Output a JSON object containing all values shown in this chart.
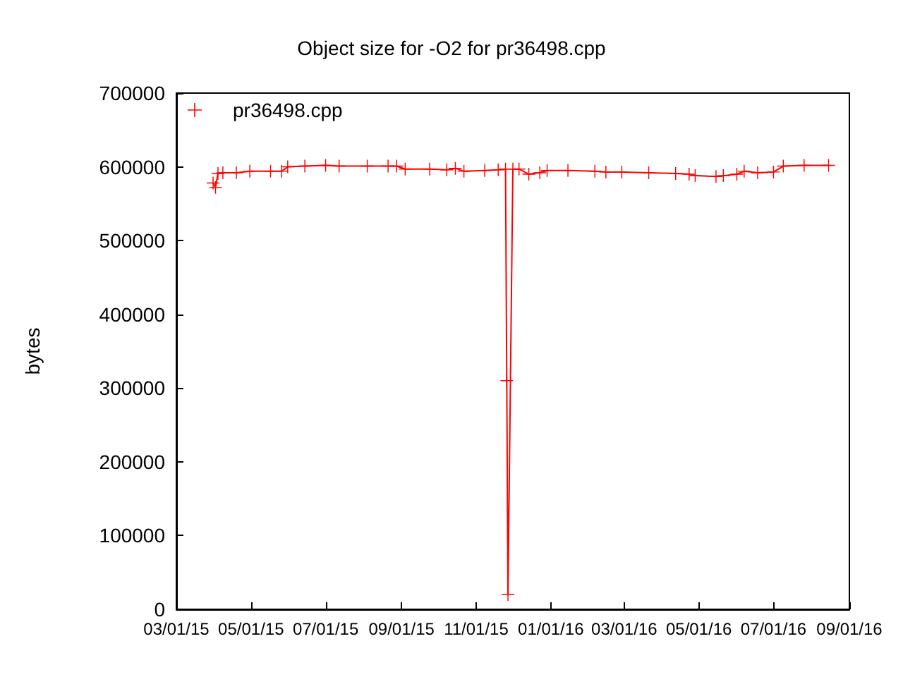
{
  "chart_data": {
    "type": "line",
    "title": "Object size for -O2 for pr36498.cpp",
    "ylabel": "bytes",
    "x": [
      "2015-03-31",
      "2015-04-02",
      "2015-04-04",
      "2015-04-08",
      "2015-04-19",
      "2015-04-30",
      "2015-05-17",
      "2015-05-26",
      "2015-05-31",
      "2015-06-14",
      "2015-07-01",
      "2015-07-12",
      "2015-08-04",
      "2015-08-21",
      "2015-08-28",
      "2015-09-04",
      "2015-09-24",
      "2015-10-08",
      "2015-10-15",
      "2015-10-22",
      "2015-11-08",
      "2015-11-19",
      "2015-11-25",
      "2015-11-26",
      "2015-11-27",
      "2015-12-01",
      "2015-12-06",
      "2015-12-14",
      "2015-12-23",
      "2015-12-29",
      "2016-01-15",
      "2016-02-06",
      "2016-02-15",
      "2016-02-28",
      "2016-03-21",
      "2016-04-12",
      "2016-04-23",
      "2016-04-28",
      "2016-05-15",
      "2016-05-21",
      "2016-06-01",
      "2016-06-07",
      "2016-06-18",
      "2016-07-01",
      "2016-07-09",
      "2016-07-26",
      "2016-08-15"
    ],
    "series": [
      {
        "name": "pr36498.cpp",
        "color": "#ff0000",
        "values": [
          578000,
          572000,
          591000,
          592000,
          592000,
          594000,
          594000,
          594000,
          600000,
          601000,
          602000,
          601000,
          601000,
          601000,
          601000,
          597000,
          597000,
          596000,
          598000,
          594000,
          595000,
          596000,
          597000,
          310000,
          20000,
          597000,
          597000,
          590000,
          592000,
          595000,
          595000,
          594000,
          593000,
          593000,
          592000,
          591000,
          590000,
          588000,
          587000,
          588000,
          590000,
          594000,
          592000,
          593000,
          601000,
          602000,
          602000
        ]
      }
    ],
    "xlim": [
      "2015-03-01",
      "2016-09-01"
    ],
    "xticks": [
      {
        "value": "2015-03-01",
        "label": "03/01/15"
      },
      {
        "value": "2015-05-01",
        "label": "05/01/15"
      },
      {
        "value": "2015-07-01",
        "label": "07/01/15"
      },
      {
        "value": "2015-09-01",
        "label": "09/01/15"
      },
      {
        "value": "2015-11-01",
        "label": "11/01/15"
      },
      {
        "value": "2016-01-01",
        "label": "01/01/16"
      },
      {
        "value": "2016-03-01",
        "label": "03/01/16"
      },
      {
        "value": "2016-05-01",
        "label": "05/01/16"
      },
      {
        "value": "2016-07-01",
        "label": "07/01/16"
      },
      {
        "value": "2016-09-01",
        "label": "09/01/16"
      }
    ],
    "ylim": [
      0,
      700000
    ],
    "yticks": [
      0,
      100000,
      200000,
      300000,
      400000,
      500000,
      600000,
      700000
    ],
    "legend": "top left",
    "marker": "cross",
    "line_style": "solid",
    "grid": false
  }
}
